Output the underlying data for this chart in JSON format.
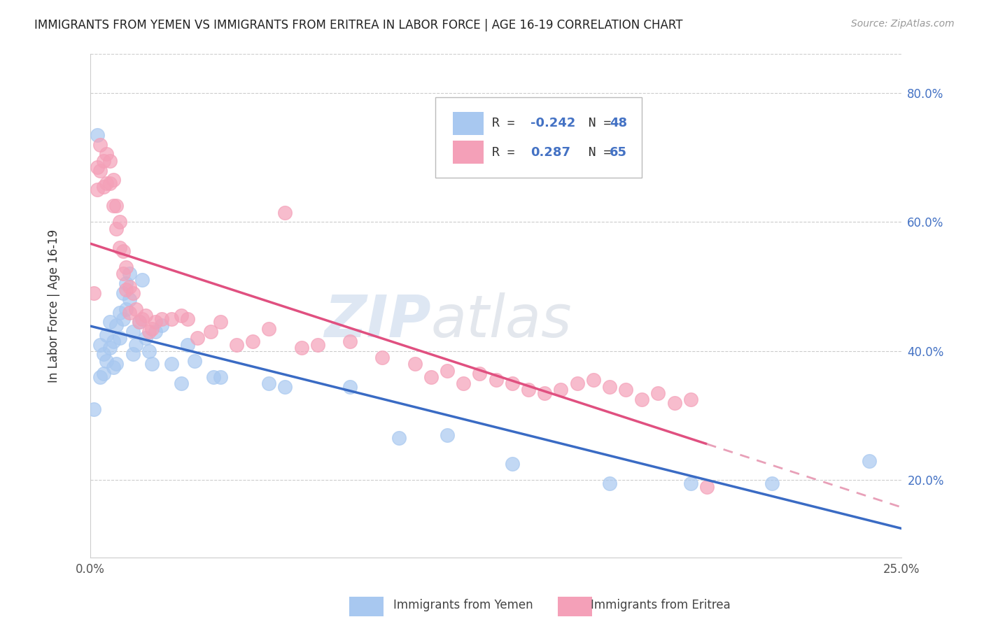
{
  "title": "IMMIGRANTS FROM YEMEN VS IMMIGRANTS FROM ERITREA IN LABOR FORCE | AGE 16-19 CORRELATION CHART",
  "source": "Source: ZipAtlas.com",
  "ylabel": "In Labor Force | Age 16-19",
  "xlim": [
    0.0,
    0.25
  ],
  "ylim": [
    0.08,
    0.86
  ],
  "xtick_vals": [
    0.0,
    0.05,
    0.1,
    0.15,
    0.2,
    0.25
  ],
  "xtick_labels": [
    "0.0%",
    "",
    "",
    "",
    "",
    "25.0%"
  ],
  "ytick_vals": [
    0.2,
    0.4,
    0.6,
    0.8
  ],
  "ytick_labels": [
    "20.0%",
    "40.0%",
    "60.0%",
    "80.0%"
  ],
  "yemen_color": "#A8C8F0",
  "eritrea_color": "#F4A0B8",
  "yemen_line_color": "#3A6BC4",
  "eritrea_line_color": "#E05080",
  "eritrea_dash_color": "#E8A0B8",
  "watermark_zip": "ZIP",
  "watermark_atlas": "atlas",
  "yemen_x": [
    0.001,
    0.002,
    0.003,
    0.003,
    0.004,
    0.004,
    0.005,
    0.005,
    0.006,
    0.006,
    0.007,
    0.007,
    0.008,
    0.008,
    0.009,
    0.009,
    0.01,
    0.01,
    0.011,
    0.011,
    0.012,
    0.012,
    0.013,
    0.013,
    0.014,
    0.015,
    0.016,
    0.017,
    0.018,
    0.019,
    0.02,
    0.022,
    0.025,
    0.028,
    0.03,
    0.032,
    0.038,
    0.04,
    0.055,
    0.06,
    0.08,
    0.095,
    0.11,
    0.13,
    0.16,
    0.185,
    0.21,
    0.24
  ],
  "yemen_y": [
    0.31,
    0.735,
    0.41,
    0.36,
    0.395,
    0.365,
    0.425,
    0.385,
    0.445,
    0.405,
    0.415,
    0.375,
    0.44,
    0.38,
    0.46,
    0.42,
    0.49,
    0.45,
    0.505,
    0.465,
    0.52,
    0.48,
    0.43,
    0.395,
    0.41,
    0.445,
    0.51,
    0.42,
    0.4,
    0.38,
    0.43,
    0.44,
    0.38,
    0.35,
    0.41,
    0.385,
    0.36,
    0.36,
    0.35,
    0.345,
    0.345,
    0.265,
    0.27,
    0.225,
    0.195,
    0.195,
    0.195,
    0.23
  ],
  "eritrea_x": [
    0.001,
    0.002,
    0.002,
    0.003,
    0.003,
    0.004,
    0.004,
    0.005,
    0.005,
    0.006,
    0.006,
    0.007,
    0.007,
    0.008,
    0.008,
    0.009,
    0.009,
    0.01,
    0.01,
    0.011,
    0.011,
    0.012,
    0.012,
    0.013,
    0.014,
    0.015,
    0.016,
    0.017,
    0.018,
    0.019,
    0.02,
    0.022,
    0.025,
    0.028,
    0.03,
    0.033,
    0.037,
    0.04,
    0.045,
    0.05,
    0.055,
    0.06,
    0.065,
    0.07,
    0.08,
    0.09,
    0.1,
    0.105,
    0.11,
    0.115,
    0.12,
    0.125,
    0.13,
    0.135,
    0.14,
    0.145,
    0.15,
    0.155,
    0.16,
    0.165,
    0.17,
    0.175,
    0.18,
    0.185,
    0.19
  ],
  "eritrea_y": [
    0.49,
    0.685,
    0.65,
    0.72,
    0.68,
    0.695,
    0.655,
    0.705,
    0.66,
    0.695,
    0.66,
    0.665,
    0.625,
    0.625,
    0.59,
    0.6,
    0.56,
    0.555,
    0.52,
    0.53,
    0.495,
    0.5,
    0.46,
    0.49,
    0.465,
    0.445,
    0.45,
    0.455,
    0.43,
    0.435,
    0.445,
    0.45,
    0.45,
    0.455,
    0.45,
    0.42,
    0.43,
    0.445,
    0.41,
    0.415,
    0.435,
    0.615,
    0.405,
    0.41,
    0.415,
    0.39,
    0.38,
    0.36,
    0.37,
    0.35,
    0.365,
    0.355,
    0.35,
    0.34,
    0.335,
    0.34,
    0.35,
    0.355,
    0.345,
    0.34,
    0.325,
    0.335,
    0.32,
    0.325,
    0.19
  ]
}
